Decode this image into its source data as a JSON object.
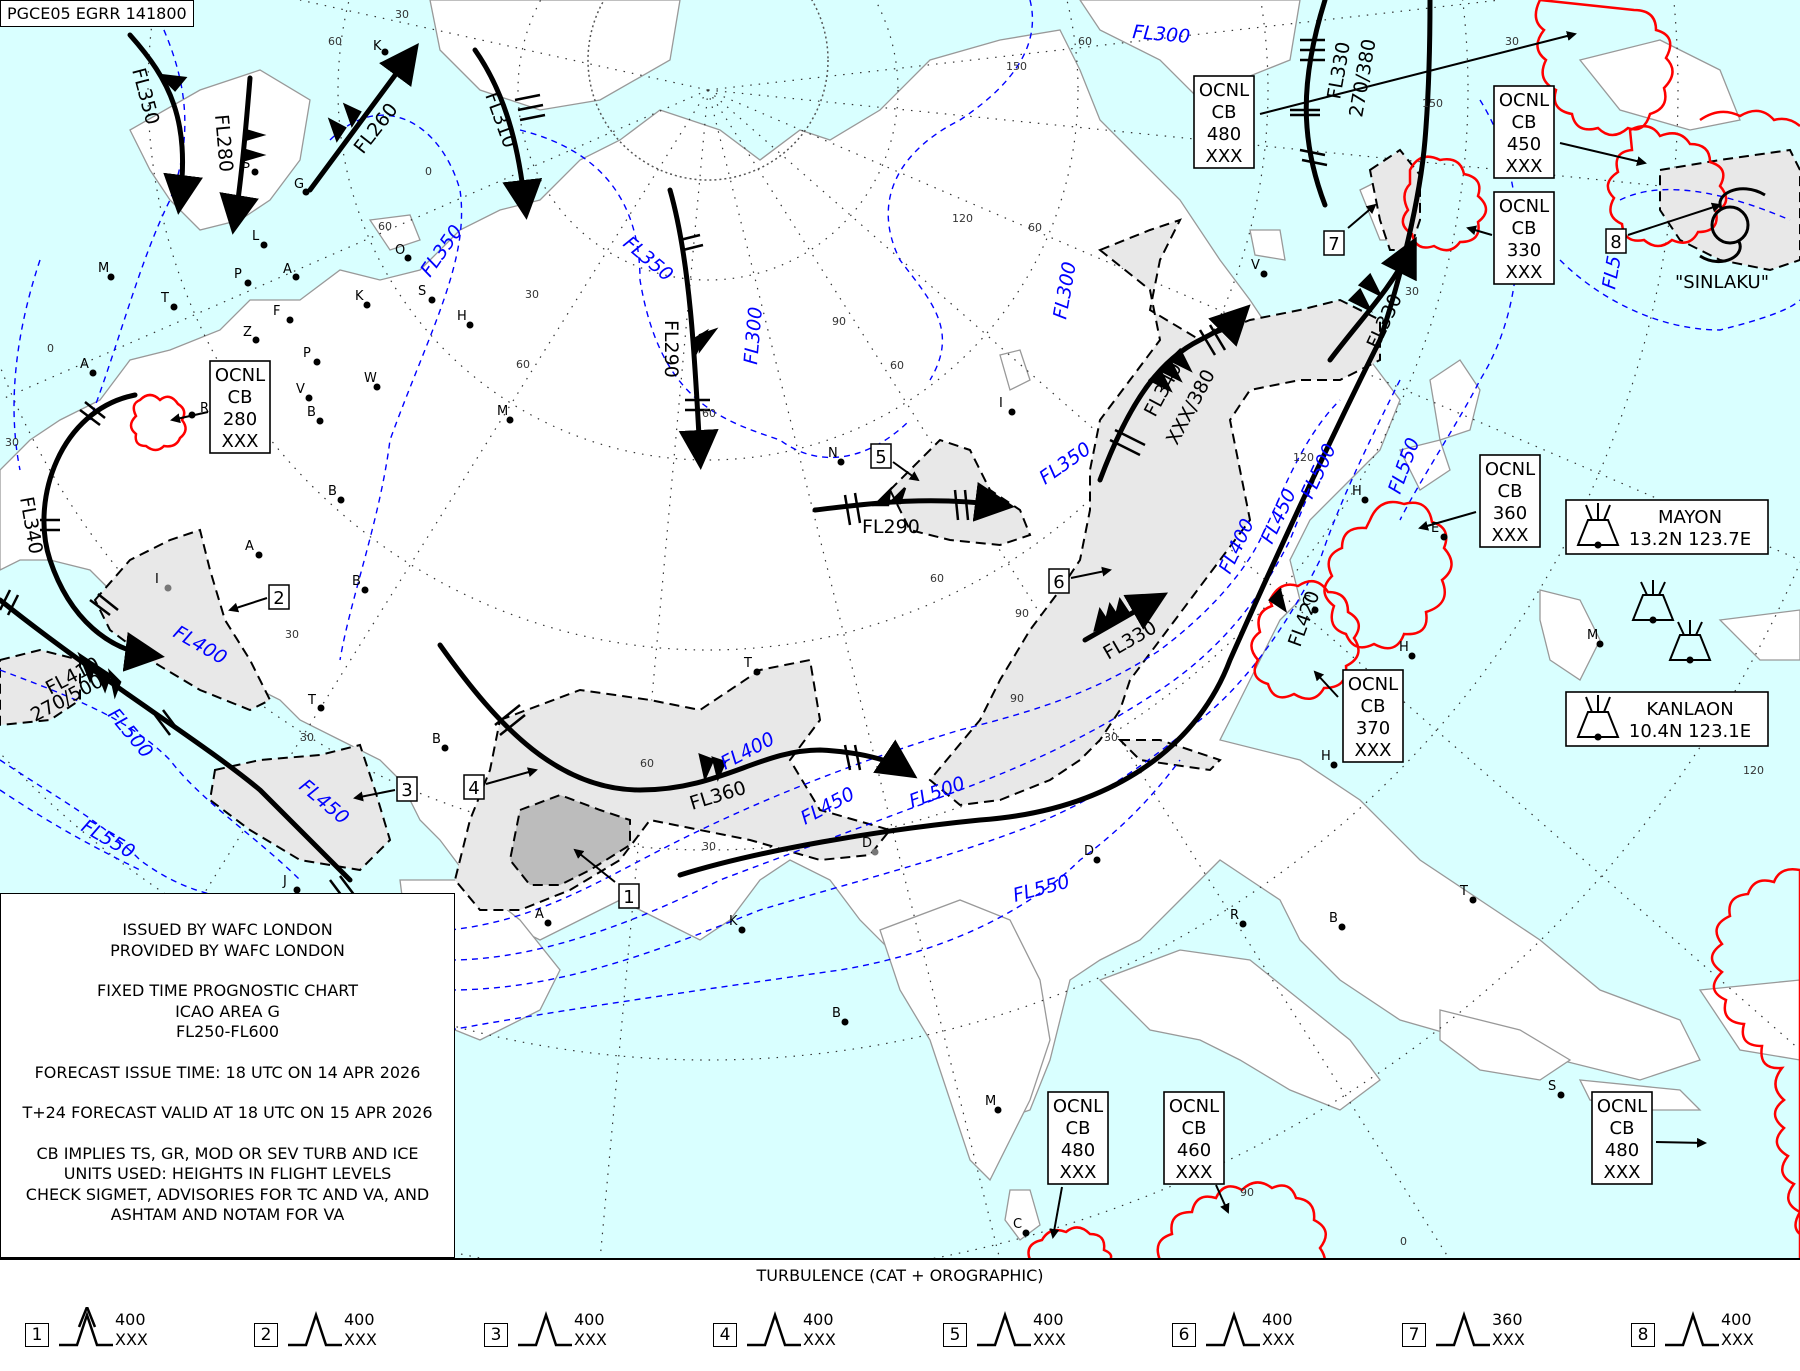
{
  "header": {
    "chart_id": "PGCE05 EGRR 141800"
  },
  "info": {
    "issued_by": "ISSUED BY WAFC LONDON",
    "provided_by": "PROVIDED BY WAFC LONDON",
    "chart_type": "FIXED TIME PROGNOSTIC CHART",
    "area": "ICAO AREA G",
    "levels": "FL250-FL600",
    "issue_time": "FORECAST ISSUE TIME: 18 UTC ON 14 APR 2026",
    "valid_time": "T+24 FORECAST VALID AT 18 UTC ON 15 APR 2026",
    "note_1": "CB IMPLIES TS, GR, MOD OR SEV TURB AND ICE",
    "note_2": "UNITS USED: HEIGHTS IN FLIGHT LEVELS",
    "note_3": "CHECK SIGMET, ADVISORIES FOR TC AND VA, AND",
    "note_4": "ASHTAM AND NOTAM FOR VA"
  },
  "colors": {
    "sea": "#d9ffff",
    "land": "#ffffff",
    "coast": "#999999",
    "turbulence_fill": "#e8e8e8",
    "turbulence_dark": "#bcbcbc",
    "tropopause": "#0000ff",
    "cb": "#ff0000",
    "jet": "#000000"
  },
  "jet_streams": [
    {
      "label": "FL350"
    },
    {
      "label": "FL280"
    },
    {
      "label": "FL260"
    },
    {
      "label": "FL310"
    },
    {
      "label": "FL290"
    },
    {
      "label": "FL290"
    },
    {
      "label": "FL340"
    },
    {
      "label": "FL410",
      "sub": "270/500"
    },
    {
      "label": "FL360"
    },
    {
      "label": "FL330"
    },
    {
      "label": "FL340",
      "sub": "XXX/380"
    },
    {
      "label": "FL420"
    },
    {
      "label": "FL330",
      "sub": "270/380"
    },
    {
      "label": "FL330"
    }
  ],
  "tropopause_labels": [
    "FL300",
    "FL350",
    "FL300",
    "FL350",
    "FL300",
    "FL350",
    "FL400",
    "FL500",
    "FL450",
    "FL550",
    "FL400",
    "FL450",
    "FL500",
    "FL550",
    "FL400",
    "FL450",
    "FL500",
    "FL550",
    "FL5"
  ],
  "cb_areas": [
    {
      "cov": "OCNL",
      "type": "CB",
      "top": "280",
      "base": "XXX"
    },
    {
      "cov": "OCNL",
      "type": "CB",
      "top": "480",
      "base": "XXX"
    },
    {
      "cov": "OCNL",
      "type": "CB",
      "top": "450",
      "base": "XXX"
    },
    {
      "cov": "OCNL",
      "type": "CB",
      "top": "330",
      "base": "XXX"
    },
    {
      "cov": "OCNL",
      "type": "CB",
      "top": "360",
      "base": "XXX"
    },
    {
      "cov": "OCNL",
      "type": "CB",
      "top": "370",
      "base": "XXX"
    },
    {
      "cov": "OCNL",
      "type": "CB",
      "top": "480",
      "base": "XXX"
    },
    {
      "cov": "OCNL",
      "type": "CB",
      "top": "460",
      "base": "XXX"
    },
    {
      "cov": "OCNL",
      "type": "CB",
      "top": "480",
      "base": "XXX"
    }
  ],
  "turbulence_markers": [
    "1",
    "2",
    "3",
    "4",
    "5",
    "6",
    "7",
    "8"
  ],
  "volcanoes": [
    {
      "name": "MAYON",
      "pos": "13.2N  123.7E"
    },
    {
      "name": "KANLAON",
      "pos": "10.4N  123.1E"
    }
  ],
  "cyclone": {
    "name": "\"SINLAKU\""
  },
  "stations": [
    "K",
    "G",
    "S",
    "L",
    "M",
    "P",
    "A",
    "T",
    "F",
    "Z",
    "P",
    "V",
    "B",
    "R",
    "A",
    "B",
    "A",
    "B",
    "T",
    "O",
    "K",
    "S",
    "H",
    "W",
    "M",
    "T",
    "B",
    "N",
    "I",
    "V",
    "D",
    "K",
    "B",
    "M",
    "C",
    "H",
    "H",
    "H",
    "M",
    "T",
    "R",
    "B",
    "S",
    "J",
    "A",
    "C",
    "E",
    "I",
    "D"
  ],
  "grid_labels": [
    "30",
    "60",
    "60",
    "0",
    "0",
    "30",
    "60",
    "30",
    "150",
    "60",
    "120",
    "60",
    "90",
    "60",
    "60",
    "30",
    "60",
    "30",
    "90",
    "30",
    "120",
    "150",
    "30",
    "120",
    "90",
    "0",
    "90",
    "60",
    "30",
    "30"
  ],
  "legend": {
    "title": "TURBULENCE (CAT + OROGRAPHIC)",
    "items": [
      {
        "num": "1",
        "top": "400",
        "base": "XXX",
        "severe": true
      },
      {
        "num": "2",
        "top": "400",
        "base": "XXX",
        "severe": false
      },
      {
        "num": "3",
        "top": "400",
        "base": "XXX",
        "severe": false
      },
      {
        "num": "4",
        "top": "400",
        "base": "XXX",
        "severe": false
      },
      {
        "num": "5",
        "top": "400",
        "base": "XXX",
        "severe": false
      },
      {
        "num": "6",
        "top": "400",
        "base": "XXX",
        "severe": false
      },
      {
        "num": "7",
        "top": "360",
        "base": "XXX",
        "severe": false
      },
      {
        "num": "8",
        "top": "400",
        "base": "XXX",
        "severe": false
      }
    ]
  }
}
